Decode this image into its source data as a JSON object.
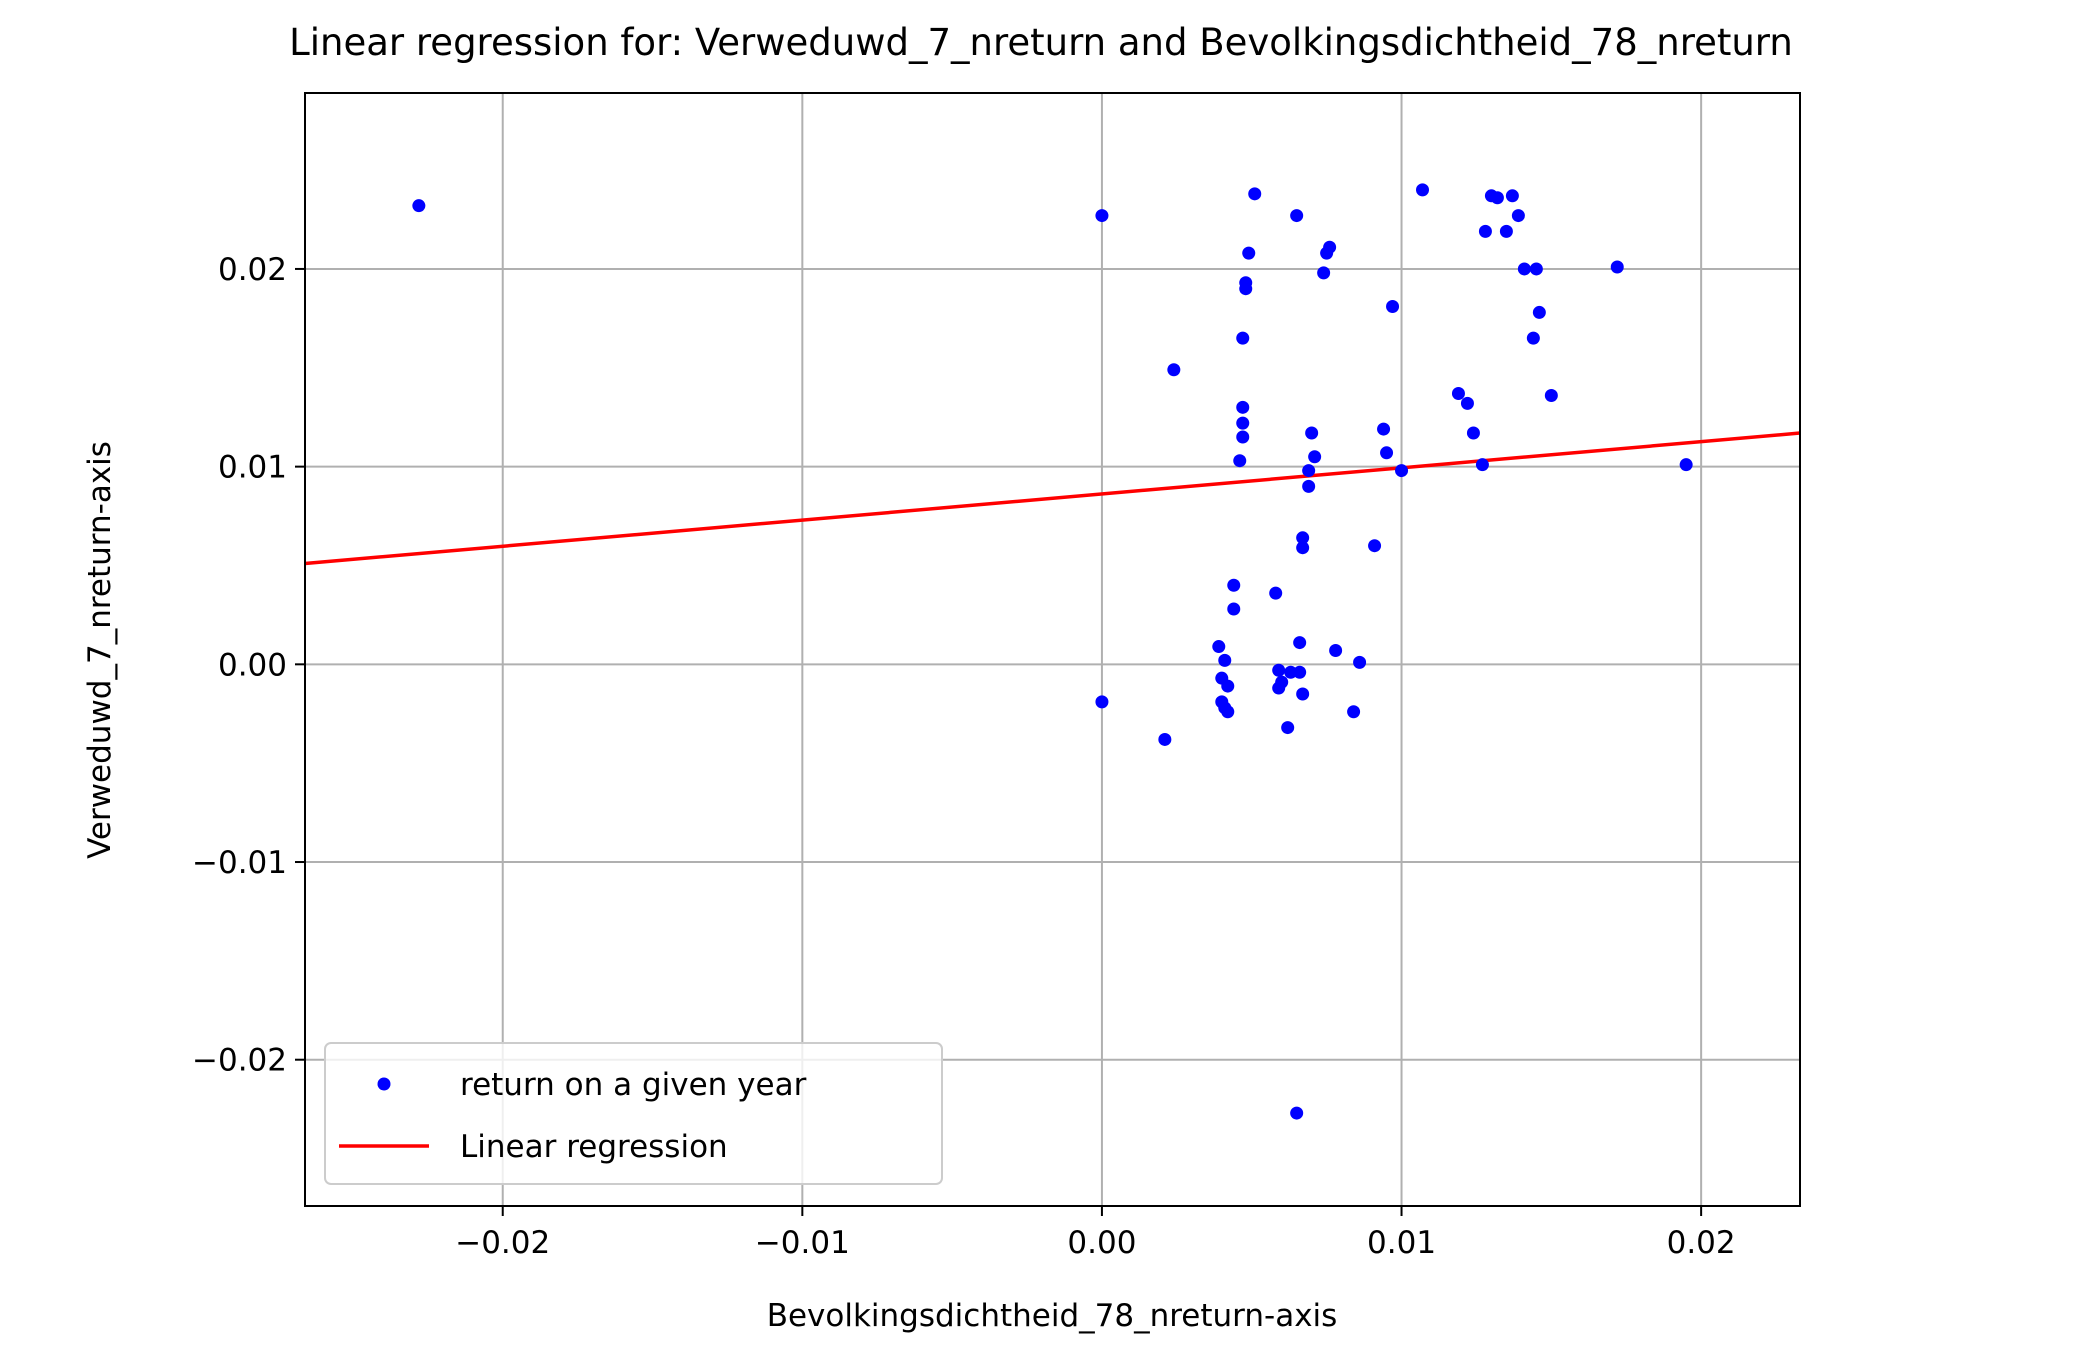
{
  "chart_data": {
    "type": "scatter",
    "title": "Linear regression for: Verweduwd_7_nreturn and Bevolkingsdichtheid_78_nreturn",
    "xlabel": "Bevolkingsdichtheid_78_nreturn-axis",
    "ylabel": "Verweduwd_7_nreturn-axis",
    "xlim": [
      -0.0266,
      0.0233
    ],
    "ylim": [
      -0.0274,
      0.0289
    ],
    "xticks": [
      -0.02,
      -0.01,
      0.0,
      0.01,
      0.02
    ],
    "xtick_labels": [
      "−0.02",
      "−0.01",
      "0.00",
      "0.01",
      "0.02"
    ],
    "yticks": [
      -0.02,
      -0.01,
      0.0,
      0.01,
      0.02
    ],
    "ytick_labels": [
      "−0.02",
      "−0.01",
      "0.00",
      "0.01",
      "0.02"
    ],
    "grid": true,
    "legend_position": "bottom-left",
    "series": [
      {
        "name": "return on a given year",
        "kind": "scatter",
        "color": "#0000ff",
        "points": [
          [
            -0.0228,
            0.0232
          ],
          [
            0.0,
            0.0227
          ],
          [
            0.0,
            -0.0019
          ],
          [
            0.0021,
            -0.0038
          ],
          [
            0.0024,
            0.0149
          ],
          [
            0.0039,
            0.0009
          ],
          [
            0.004,
            -0.0007
          ],
          [
            0.0041,
            0.0002
          ],
          [
            0.004,
            -0.0019
          ],
          [
            0.0041,
            -0.0022
          ],
          [
            0.0042,
            -0.0011
          ],
          [
            0.0042,
            -0.0024
          ],
          [
            0.0044,
            0.004
          ],
          [
            0.0044,
            0.0028
          ],
          [
            0.0046,
            0.0103
          ],
          [
            0.0047,
            0.013
          ],
          [
            0.0047,
            0.0122
          ],
          [
            0.0047,
            0.0115
          ],
          [
            0.0047,
            0.0165
          ],
          [
            0.0048,
            0.0193
          ],
          [
            0.0048,
            0.019
          ],
          [
            0.0049,
            0.0208
          ],
          [
            0.0051,
            0.0238
          ],
          [
            0.0058,
            0.0036
          ],
          [
            0.0059,
            -0.0003
          ],
          [
            0.0059,
            -0.0012
          ],
          [
            0.006,
            -0.0009
          ],
          [
            0.0062,
            -0.0032
          ],
          [
            0.0063,
            -0.0004
          ],
          [
            0.0065,
            0.0227
          ],
          [
            0.0065,
            -0.0227
          ],
          [
            0.0066,
            0.0011
          ],
          [
            0.0066,
            -0.0004
          ],
          [
            0.0067,
            -0.0015
          ],
          [
            0.0067,
            0.0064
          ],
          [
            0.0067,
            0.0059
          ],
          [
            0.0069,
            0.009
          ],
          [
            0.0069,
            0.0098
          ],
          [
            0.007,
            0.0117
          ],
          [
            0.0071,
            0.0105
          ],
          [
            0.0074,
            0.0198
          ],
          [
            0.0075,
            0.0208
          ],
          [
            0.0076,
            0.0211
          ],
          [
            0.0078,
            0.0007
          ],
          [
            0.0084,
            -0.0024
          ],
          [
            0.0086,
            0.0001
          ],
          [
            0.0091,
            0.006
          ],
          [
            0.0094,
            0.0119
          ],
          [
            0.0095,
            0.0107
          ],
          [
            0.0097,
            0.0181
          ],
          [
            0.01,
            0.0098
          ],
          [
            0.0107,
            0.024
          ],
          [
            0.0119,
            0.0137
          ],
          [
            0.0122,
            0.0132
          ],
          [
            0.0124,
            0.0117
          ],
          [
            0.0127,
            0.0101
          ],
          [
            0.0128,
            0.0219
          ],
          [
            0.013,
            0.0237
          ],
          [
            0.0132,
            0.0236
          ],
          [
            0.0135,
            0.0219
          ],
          [
            0.0137,
            0.0237
          ],
          [
            0.0139,
            0.0227
          ],
          [
            0.0141,
            0.02
          ],
          [
            0.0144,
            0.0165
          ],
          [
            0.0145,
            0.02
          ],
          [
            0.0146,
            0.0178
          ],
          [
            0.015,
            0.0136
          ],
          [
            0.0172,
            0.0201
          ],
          [
            0.0195,
            0.0101
          ]
        ]
      },
      {
        "name": "Linear regression",
        "kind": "line",
        "color": "#ff0000",
        "x": [
          -0.0266,
          0.0233
        ],
        "y": [
          0.0051,
          0.0117
        ]
      }
    ]
  }
}
